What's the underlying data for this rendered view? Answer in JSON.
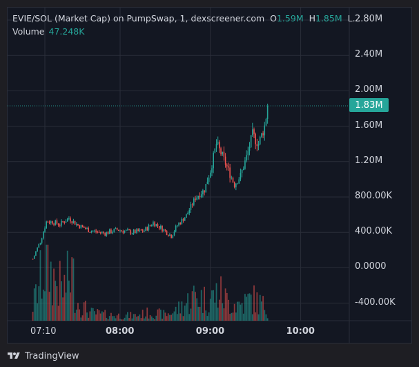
{
  "legend": {
    "symbol": "EVIE/SOL (Market Cap) on PumpSwap, 1, dexscreener.com",
    "open_label": "O",
    "open_value": "1.59M",
    "high_label": "H",
    "high_value": "1.85M",
    "truncated": "L...",
    "volume_label": "Volume",
    "volume_value": "47.248K"
  },
  "last_price": "1.83M",
  "colors": {
    "up": "#26a69a",
    "down": "#ef5350",
    "background": "#131722",
    "grid": "#2a2e39"
  },
  "footer": {
    "brand": "TradingView",
    "logo_icon": "tradingview-logo-icon"
  },
  "chart_data": {
    "type": "candlestick",
    "y_ticks": [
      "2.80M",
      "2.40M",
      "2.00M",
      "1.60M",
      "1.20M",
      "800.00K",
      "400.00K",
      "0.0000",
      "-400.00K"
    ],
    "x_ticks": [
      "07:10",
      "08:00",
      "09:00",
      "10:00"
    ],
    "x_tick_times_min": [
      430,
      480,
      540,
      600
    ],
    "x_major": [
      false,
      true,
      true,
      true
    ],
    "ylim": [
      -640000,
      3000000
    ],
    "last_value": 1830000,
    "close_points": [
      [
        422,
        100000
      ],
      [
        427,
        300000
      ],
      [
        431,
        520000
      ],
      [
        435,
        520000
      ],
      [
        440,
        490000
      ],
      [
        446,
        560000
      ],
      [
        452,
        480000
      ],
      [
        460,
        420000
      ],
      [
        470,
        390000
      ],
      [
        478,
        430000
      ],
      [
        488,
        400000
      ],
      [
        496,
        420000
      ],
      [
        502,
        510000
      ],
      [
        508,
        440000
      ],
      [
        514,
        360000
      ],
      [
        518,
        480000
      ],
      [
        524,
        590000
      ],
      [
        530,
        790000
      ],
      [
        536,
        880000
      ],
      [
        540,
        1100000
      ],
      [
        544,
        1400000
      ],
      [
        548,
        1260000
      ],
      [
        552,
        1100000
      ],
      [
        556,
        940000
      ],
      [
        560,
        1040000
      ],
      [
        564,
        1250000
      ],
      [
        568,
        1500000
      ],
      [
        572,
        1400000
      ],
      [
        576,
        1600000
      ],
      [
        578,
        1830000
      ]
    ],
    "volume_points": [
      [
        422,
        15000
      ],
      [
        427,
        40000
      ],
      [
        431,
        55000
      ],
      [
        436,
        42000
      ],
      [
        442,
        30000
      ],
      [
        448,
        48000
      ],
      [
        452,
        18000
      ],
      [
        460,
        8000
      ],
      [
        470,
        6000
      ],
      [
        480,
        5000
      ],
      [
        490,
        5000
      ],
      [
        500,
        8000
      ],
      [
        510,
        6000
      ],
      [
        516,
        9000
      ],
      [
        522,
        15000
      ],
      [
        530,
        25000
      ],
      [
        538,
        20000
      ],
      [
        546,
        28000
      ],
      [
        552,
        18000
      ],
      [
        560,
        16000
      ],
      [
        568,
        22000
      ],
      [
        574,
        16000
      ],
      [
        578,
        12000
      ]
    ]
  }
}
